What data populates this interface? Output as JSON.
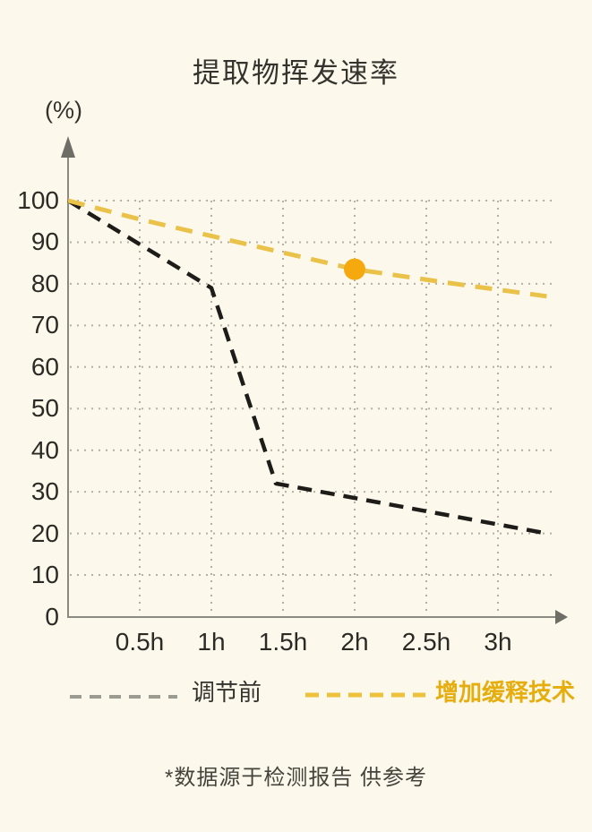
{
  "page": {
    "title": "提取物挥发速率",
    "footnote": "*数据源于检测报告 供参考"
  },
  "chart_data": {
    "type": "line",
    "title": "提取物挥发速率",
    "ylabel": "(%)",
    "xlabel": "",
    "x_tick_labels": [
      "0.5h",
      "1h",
      "1.5h",
      "2h",
      "2.5h",
      "3h"
    ],
    "x_tick_values": [
      0.5,
      1,
      1.5,
      2,
      2.5,
      3
    ],
    "y_ticks": [
      0,
      10,
      20,
      30,
      40,
      50,
      60,
      70,
      80,
      90,
      100
    ],
    "ylim": [
      0,
      100
    ],
    "xlim": [
      0,
      3.4
    ],
    "grid": "dotted",
    "legend_position": "bottom",
    "series": [
      {
        "name": "调节前",
        "color": "#1d1c18",
        "style": "dashed",
        "points": [
          [
            0,
            100
          ],
          [
            1,
            79
          ],
          [
            1.45,
            32
          ],
          [
            3.34,
            20
          ]
        ]
      },
      {
        "name": "增加缓释技术",
        "color": "#eac24a",
        "style": "dashed",
        "points": [
          [
            0,
            100
          ],
          [
            0.5,
            95.5
          ],
          [
            1,
            91.5
          ],
          [
            1.5,
            87.5
          ],
          [
            2,
            83.5
          ],
          [
            2.7,
            80
          ],
          [
            3.34,
            77
          ]
        ],
        "marker": {
          "x": 2,
          "y": 83.5,
          "color": "#f6a90f"
        }
      }
    ],
    "annotation": "*数据源于检测报告 供参考"
  },
  "legend": {
    "items": [
      {
        "label": "调节前",
        "line_color": "#9c9b91",
        "text_color": "#34332d"
      },
      {
        "label": "增加缓释技术",
        "line_color": "#ecc23c",
        "text_color": "#e6ad0e"
      }
    ]
  },
  "colors": {
    "background": "#fcf9ec",
    "axis": "#8b8a82",
    "arrow": "#6f6e66",
    "grid_dots": "#b2b1a4",
    "title_text": "#34332d",
    "tick_text": "#2b2a25",
    "footnote_text": "#45443c"
  }
}
